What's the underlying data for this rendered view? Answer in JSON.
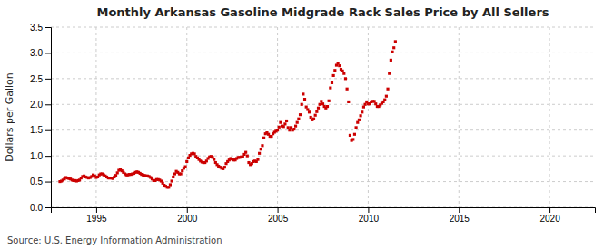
{
  "chart_data": {
    "type": "scatter",
    "title": "Monthly Arkansas Gasoline Midgrade Rack Sales Price by All Sellers",
    "y_label": "Dollars per Gallon",
    "annotation": "Source: U.S. Energy Information Administration",
    "color": "#cc0000",
    "marker": "square",
    "grid": true,
    "xlim": [
      1992.5,
      2022.5
    ],
    "ylim": [
      0.0,
      3.5
    ],
    "xticks": [
      1995,
      2000,
      2005,
      2010,
      2015,
      2020
    ],
    "yticks": [
      {
        "value": 0.0,
        "label": "0.0"
      },
      0.5,
      {
        "value": 1.0,
        "label": "1.0"
      },
      1.5,
      {
        "value": 2.0,
        "label": "2.0"
      },
      2.5,
      {
        "value": 3.0,
        "label": "3.0"
      },
      3.5
    ],
    "x": [
      1993.0,
      1993.083,
      1993.167,
      1993.25,
      1993.333,
      1993.417,
      1993.5,
      1993.583,
      1993.667,
      1993.75,
      1993.833,
      1993.917,
      1994.0,
      1994.083,
      1994.167,
      1994.25,
      1994.333,
      1994.417,
      1994.5,
      1994.583,
      1994.667,
      1994.75,
      1994.833,
      1994.917,
      1995.0,
      1995.083,
      1995.167,
      1995.25,
      1995.333,
      1995.417,
      1995.5,
      1995.583,
      1995.667,
      1995.75,
      1995.833,
      1995.917,
      1996.0,
      1996.083,
      1996.167,
      1996.25,
      1996.333,
      1996.417,
      1996.5,
      1996.583,
      1996.667,
      1996.75,
      1996.833,
      1996.917,
      1997.0,
      1997.083,
      1997.167,
      1997.25,
      1997.333,
      1997.417,
      1997.5,
      1997.583,
      1997.667,
      1997.75,
      1997.833,
      1997.917,
      1998.0,
      1998.083,
      1998.167,
      1998.25,
      1998.333,
      1998.417,
      1998.5,
      1998.583,
      1998.667,
      1998.75,
      1998.833,
      1998.917,
      1999.0,
      1999.083,
      1999.167,
      1999.25,
      1999.333,
      1999.417,
      1999.5,
      1999.583,
      1999.667,
      1999.75,
      1999.833,
      1999.917,
      2000.0,
      2000.083,
      2000.167,
      2000.25,
      2000.333,
      2000.417,
      2000.5,
      2000.583,
      2000.667,
      2000.75,
      2000.833,
      2000.917,
      2001.0,
      2001.083,
      2001.167,
      2001.25,
      2001.333,
      2001.417,
      2001.5,
      2001.583,
      2001.667,
      2001.75,
      2001.833,
      2001.917,
      2002.0,
      2002.083,
      2002.167,
      2002.25,
      2002.333,
      2002.417,
      2002.5,
      2002.583,
      2002.667,
      2002.75,
      2002.833,
      2002.917,
      2003.0,
      2003.083,
      2003.167,
      2003.25,
      2003.333,
      2003.417,
      2003.5,
      2003.583,
      2003.667,
      2003.75,
      2003.833,
      2003.917,
      2004.0,
      2004.083,
      2004.167,
      2004.25,
      2004.333,
      2004.417,
      2004.5,
      2004.583,
      2004.667,
      2004.75,
      2004.833,
      2004.917,
      2005.0,
      2005.083,
      2005.167,
      2005.25,
      2005.333,
      2005.417,
      2005.5,
      2005.583,
      2005.667,
      2005.75,
      2005.833,
      2005.917,
      2006.0,
      2006.083,
      2006.167,
      2006.25,
      2006.333,
      2006.417,
      2006.5,
      2006.583,
      2006.667,
      2006.75,
      2006.833,
      2006.917,
      2007.0,
      2007.083,
      2007.167,
      2007.25,
      2007.333,
      2007.417,
      2007.5,
      2007.583,
      2007.667,
      2007.75,
      2007.833,
      2007.917,
      2008.0,
      2008.083,
      2008.167,
      2008.25,
      2008.333,
      2008.417,
      2008.5,
      2008.583,
      2008.667,
      2008.75,
      2008.833,
      2008.917,
      2009.0,
      2009.083,
      2009.167,
      2009.25,
      2009.333,
      2009.417,
      2009.5,
      2009.583,
      2009.667,
      2009.75,
      2009.833,
      2009.917,
      2010.0,
      2010.083,
      2010.167,
      2010.25,
      2010.333,
      2010.417,
      2010.5,
      2010.583,
      2010.667,
      2010.75,
      2010.833,
      2010.917,
      2011.0,
      2011.083,
      2011.167,
      2011.25,
      2011.333,
      2011.417,
      2011.5
    ],
    "values": [
      0.5,
      0.51,
      0.53,
      0.55,
      0.58,
      0.57,
      0.56,
      0.55,
      0.53,
      0.52,
      0.52,
      0.51,
      0.52,
      0.53,
      0.57,
      0.6,
      0.61,
      0.59,
      0.58,
      0.57,
      0.58,
      0.6,
      0.63,
      0.61,
      0.58,
      0.59,
      0.63,
      0.65,
      0.65,
      0.63,
      0.61,
      0.59,
      0.57,
      0.57,
      0.57,
      0.56,
      0.59,
      0.62,
      0.67,
      0.72,
      0.73,
      0.71,
      0.68,
      0.65,
      0.63,
      0.63,
      0.64,
      0.64,
      0.65,
      0.66,
      0.68,
      0.69,
      0.68,
      0.66,
      0.64,
      0.63,
      0.62,
      0.61,
      0.61,
      0.6,
      0.58,
      0.55,
      0.52,
      0.52,
      0.54,
      0.54,
      0.53,
      0.51,
      0.47,
      0.43,
      0.41,
      0.39,
      0.39,
      0.44,
      0.51,
      0.59,
      0.65,
      0.7,
      0.68,
      0.65,
      0.65,
      0.71,
      0.76,
      0.79,
      0.89,
      0.96,
      1.01,
      1.04,
      1.05,
      1.04,
      0.99,
      0.96,
      0.93,
      0.9,
      0.88,
      0.87,
      0.87,
      0.9,
      0.95,
      0.98,
      0.99,
      0.97,
      0.93,
      0.87,
      0.83,
      0.8,
      0.78,
      0.76,
      0.75,
      0.78,
      0.85,
      0.89,
      0.92,
      0.95,
      0.94,
      0.92,
      0.92,
      0.95,
      0.97,
      0.97,
      0.98,
      0.98,
      1.03,
      1.07,
      1.0,
      0.87,
      0.83,
      0.85,
      0.89,
      0.9,
      0.89,
      0.93,
      1.05,
      1.13,
      1.2,
      1.35,
      1.43,
      1.45,
      1.42,
      1.38,
      1.38,
      1.43,
      1.46,
      1.48,
      1.5,
      1.56,
      1.65,
      1.58,
      1.57,
      1.62,
      1.68,
      1.55,
      1.5,
      1.55,
      1.5,
      1.52,
      1.58,
      1.65,
      1.72,
      1.8,
      2.0,
      2.2,
      2.1,
      1.95,
      1.9,
      1.85,
      1.75,
      1.7,
      1.72,
      1.79,
      1.86,
      1.93,
      2.0,
      2.06,
      2.01,
      1.96,
      1.93,
      1.96,
      2.07,
      2.32,
      2.42,
      2.56,
      2.66,
      2.76,
      2.8,
      2.75,
      2.68,
      2.65,
      2.6,
      2.5,
      2.3,
      2.05,
      1.4,
      1.3,
      1.32,
      1.42,
      1.55,
      1.65,
      1.7,
      1.78,
      1.85,
      1.95,
      2.0,
      2.05,
      2.01,
      2.01,
      2.05,
      2.06,
      2.06,
      2.01,
      1.96,
      1.96,
      1.99,
      2.02,
      2.05,
      2.09,
      2.16,
      2.3,
      2.6,
      2.86,
      3.02,
      3.1,
      3.22
    ]
  }
}
